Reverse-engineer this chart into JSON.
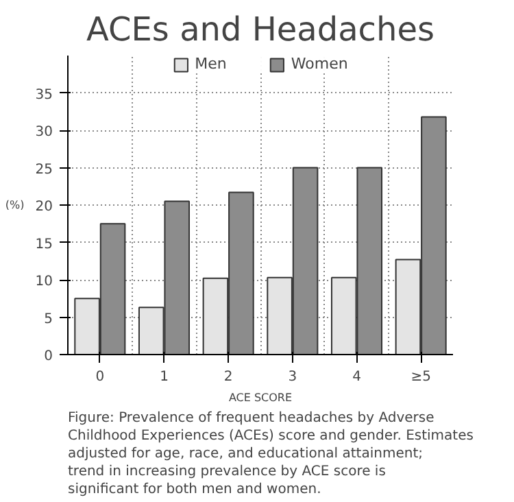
{
  "chart_data": {
    "type": "bar",
    "title": "ACEs and Headaches",
    "xlabel": "ACE SCORE",
    "ylabel": "(%)",
    "categories": [
      "0",
      "1",
      "2",
      "3",
      "4",
      "≥5"
    ],
    "series": [
      {
        "name": "Men",
        "color": "#e4e4e4",
        "values": [
          7.5,
          6.3,
          10.2,
          10.3,
          10.3,
          12.7
        ]
      },
      {
        "name": "Women",
        "color": "#8c8c8c",
        "values": [
          17.5,
          20.5,
          21.7,
          25,
          25,
          31.8
        ]
      }
    ],
    "ylim": [
      0,
      40
    ],
    "yticks": [
      0,
      5,
      10,
      15,
      20,
      25,
      30,
      35
    ],
    "grid": true,
    "legend": "top",
    "annotations": [
      "Figure: Prevalence of frequent headaches by Adverse Childhood Experiences (ACEs) score and gender. Estimates adjusted for age, race, and educational attainment; trend in increasing prevalence by ACE score is significant for both men and women."
    ]
  }
}
